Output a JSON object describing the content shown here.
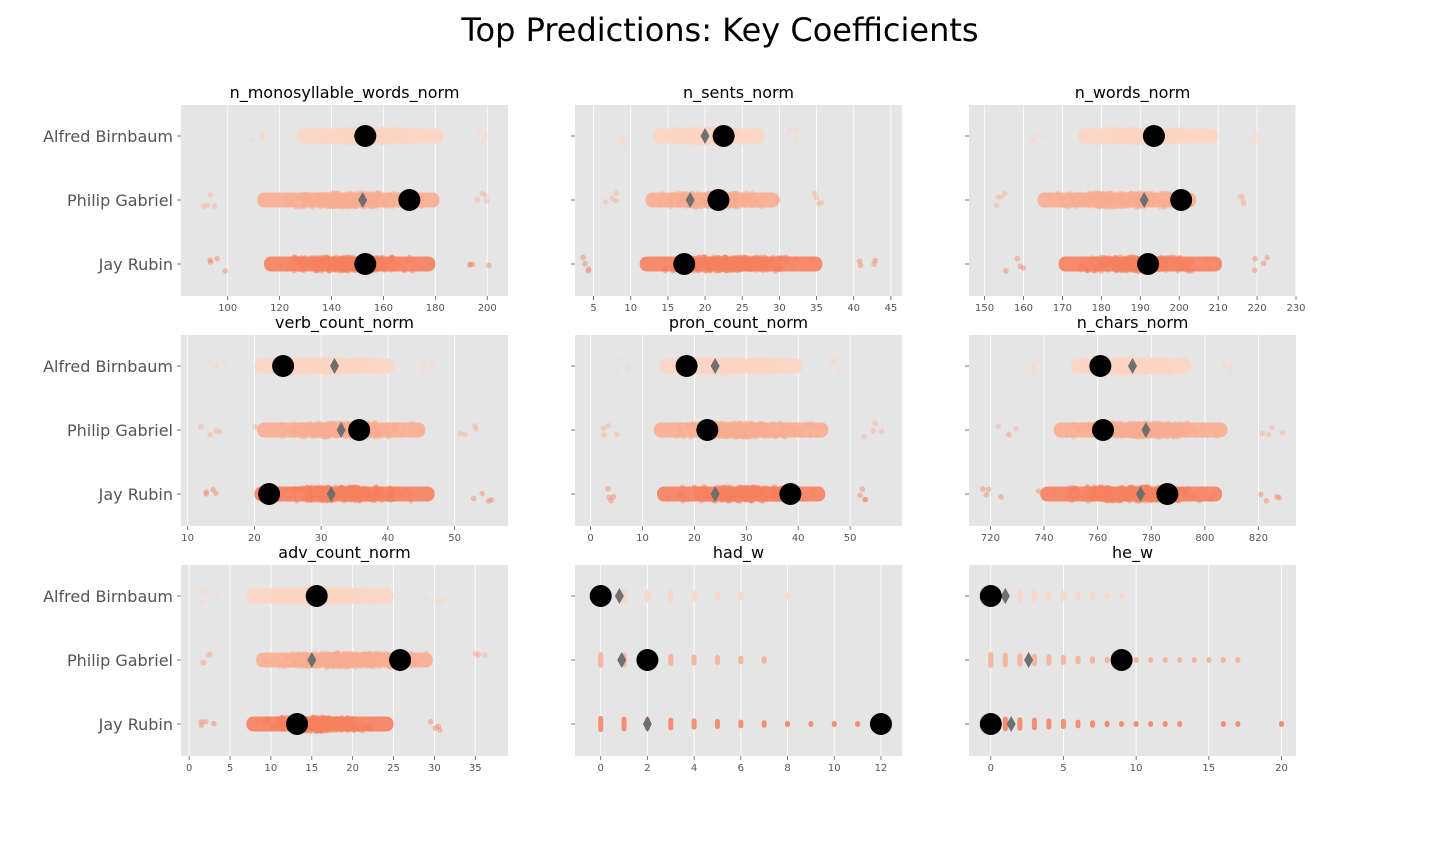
{
  "figure": {
    "title": "Top Predictions: Key Coefficients",
    "categories": [
      "Alfred Birnbaum",
      "Philip Gabriel",
      "Jay Rubin"
    ],
    "colors": {
      "panel_bg": "#e5e5e5",
      "grid": "#ffffff",
      "tick_text": "#555555",
      "alfred": "#fcd5c3",
      "philip": "#f9ad91",
      "jay": "#f7805f",
      "prediction": "#000000",
      "mean_marker": "#6f6f6f"
    }
  },
  "chart_data": [
    {
      "type": "scatter",
      "title": "n_monosyllable_words_norm",
      "categories": [
        "Alfred Birnbaum",
        "Philip Gabriel",
        "Jay Rubin"
      ],
      "xlim": [
        82,
        208
      ],
      "xticks": [
        100,
        120,
        140,
        160,
        180,
        200
      ],
      "spread": [
        [
          108,
          202
        ],
        [
          88,
          205
        ],
        [
          92,
          202
        ]
      ],
      "prediction": [
        153,
        170,
        153
      ],
      "mean": [
        null,
        152,
        null
      ]
    },
    {
      "type": "scatter",
      "title": "n_sents_norm",
      "categories": [
        "Alfred Birnbaum",
        "Philip Gabriel",
        "Jay Rubin"
      ],
      "xlim": [
        2.5,
        46.5
      ],
      "xticks": [
        5,
        10,
        15,
        20,
        25,
        30,
        35,
        40,
        45
      ],
      "spread": [
        [
          8,
          33
        ],
        [
          6,
          36
        ],
        [
          3,
          44
        ]
      ],
      "prediction": [
        22.5,
        21.8,
        17.2
      ],
      "mean": [
        20,
        18,
        null
      ]
    },
    {
      "type": "scatter",
      "title": "n_words_norm",
      "categories": [
        "Alfred Birnbaum",
        "Philip Gabriel",
        "Jay Rubin"
      ],
      "xlim": [
        146,
        230
      ],
      "xticks": [
        150,
        160,
        170,
        180,
        190,
        200,
        210,
        220,
        230
      ],
      "spread": [
        [
          162,
          222
        ],
        [
          150,
          218
        ],
        [
          155,
          225
        ]
      ],
      "prediction": [
        193.5,
        200.5,
        192
      ],
      "mean": [
        null,
        191,
        null
      ]
    },
    {
      "type": "scatter",
      "title": "verb_count_norm",
      "categories": [
        "Alfred Birnbaum",
        "Philip Gabriel",
        "Jay Rubin"
      ],
      "xlim": [
        9,
        58
      ],
      "xticks": [
        10,
        20,
        30,
        40,
        50
      ],
      "spread": [
        [
          13,
          48
        ],
        [
          12,
          54
        ],
        [
          11,
          56
        ]
      ],
      "prediction": [
        24.3,
        35.7,
        22.2
      ],
      "mean": [
        32,
        33,
        31.5
      ]
    },
    {
      "type": "scatter",
      "title": "pron_count_norm",
      "categories": [
        "Alfred Birnbaum",
        "Philip Gabriel",
        "Jay Rubin"
      ],
      "xlim": [
        -3,
        60
      ],
      "xticks": [
        0,
        10,
        20,
        30,
        40,
        50
      ],
      "spread": [
        [
          4,
          50
        ],
        [
          1,
          57
        ],
        [
          2,
          56
        ]
      ],
      "prediction": [
        18.5,
        22.5,
        38.5
      ],
      "mean": [
        24,
        null,
        24
      ]
    },
    {
      "type": "scatter",
      "title": "n_chars_norm",
      "categories": [
        "Alfred Birnbaum",
        "Philip Gabriel",
        "Jay Rubin"
      ],
      "xlim": [
        712,
        834
      ],
      "xticks": [
        720,
        740,
        760,
        780,
        800,
        820
      ],
      "spread": [
        [
          735,
          810
        ],
        [
          722,
          830
        ],
        [
          716,
          829
        ]
      ],
      "prediction": [
        761,
        762,
        786
      ],
      "mean": [
        773,
        778,
        776
      ]
    },
    {
      "type": "scatter",
      "title": "adv_count_norm",
      "categories": [
        "Alfred Birnbaum",
        "Philip Gabriel",
        "Jay Rubin"
      ],
      "xlim": [
        -1,
        39
      ],
      "xticks": [
        0,
        5,
        10,
        15,
        20,
        25,
        30,
        35
      ],
      "spread": [
        [
          1,
          31
        ],
        [
          1,
          37
        ],
        [
          1,
          31
        ]
      ],
      "prediction": [
        15.6,
        25.8,
        13.2
      ],
      "mean": [
        14.8,
        15,
        null
      ]
    },
    {
      "type": "scatter",
      "title": "had_w",
      "categories": [
        "Alfred Birnbaum",
        "Philip Gabriel",
        "Jay Rubin"
      ],
      "xlim": [
        -1.1,
        12.9
      ],
      "xticks": [
        0,
        2,
        4,
        6,
        8,
        10,
        12
      ],
      "discrete": [
        [
          0,
          1,
          2,
          3,
          4,
          5,
          6,
          8
        ],
        [
          0,
          1,
          2,
          3,
          4,
          5,
          6,
          7
        ],
        [
          0,
          1,
          2,
          3,
          4,
          5,
          6,
          7,
          8,
          9,
          10,
          11,
          12
        ]
      ],
      "prediction": [
        0,
        2,
        12
      ],
      "mean": [
        0.8,
        0.9,
        2
      ]
    },
    {
      "type": "scatter",
      "title": "he_w",
      "categories": [
        "Alfred Birnbaum",
        "Philip Gabriel",
        "Jay Rubin"
      ],
      "xlim": [
        -1.5,
        21
      ],
      "xticks": [
        0,
        5,
        10,
        15,
        20
      ],
      "discrete": [
        [
          0,
          1,
          2,
          3,
          4,
          5,
          6,
          7,
          8,
          9
        ],
        [
          0,
          1,
          2,
          3,
          4,
          5,
          6,
          7,
          8,
          9,
          10,
          11,
          12,
          13,
          14,
          15,
          16,
          17
        ],
        [
          0,
          1,
          2,
          3,
          4,
          5,
          6,
          7,
          8,
          9,
          10,
          11,
          12,
          13,
          16,
          17,
          20
        ]
      ],
      "prediction": [
        0,
        9,
        0
      ],
      "mean": [
        1,
        2.6,
        1.4
      ]
    }
  ]
}
